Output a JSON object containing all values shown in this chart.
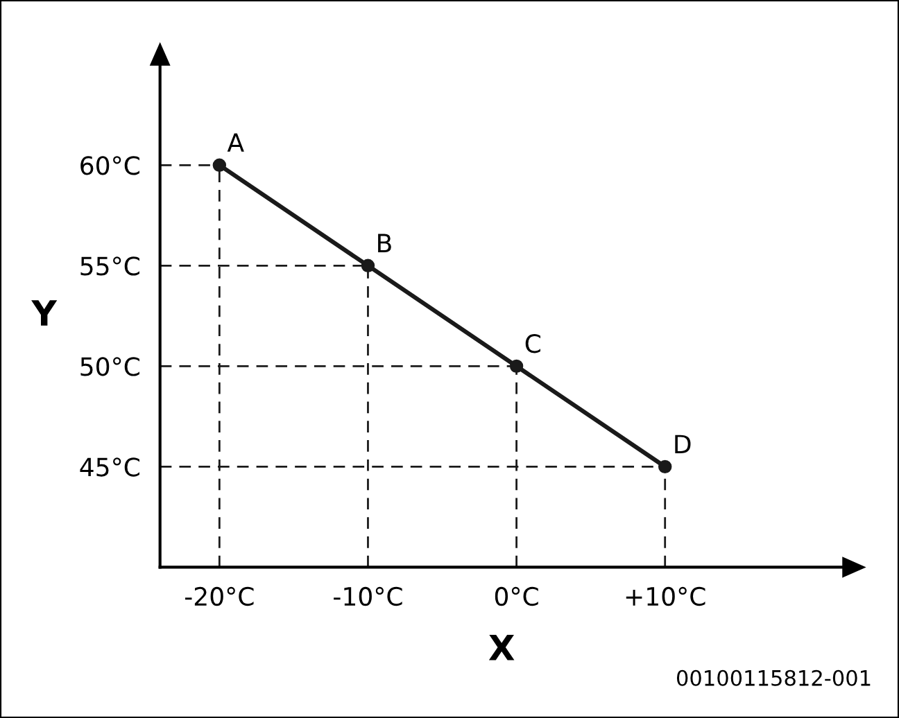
{
  "chart_data": {
    "type": "line",
    "xlabel": "X",
    "ylabel": "Y",
    "x": [
      -20,
      -10,
      0,
      10
    ],
    "series": [
      {
        "color": "#1a1a1a",
        "values": [
          60,
          55,
          50,
          45
        ]
      }
    ],
    "marker": "circle",
    "xlim": [
      -24,
      22
    ],
    "ylim": [
      40,
      65
    ],
    "xticks": [
      {
        "value": -20,
        "label": "-20°C"
      },
      {
        "value": -10,
        "label": "-10°C"
      },
      {
        "value": 0,
        "label": "0°C"
      },
      {
        "value": 10,
        "label": "+10°C"
      }
    ],
    "yticks": [
      {
        "value": 45,
        "label": "45°C"
      },
      {
        "value": 50,
        "label": "50°C"
      },
      {
        "value": 55,
        "label": "55°C"
      },
      {
        "value": 60,
        "label": "60°C"
      }
    ],
    "ref_lines": [
      {
        "axis": "x",
        "value": -20,
        "line_style": "dashed"
      },
      {
        "axis": "x",
        "value": -10,
        "line_style": "dashed"
      },
      {
        "axis": "x",
        "value": 0,
        "line_style": "dashed"
      },
      {
        "axis": "x",
        "value": 10,
        "line_style": "dashed"
      },
      {
        "axis": "y",
        "value": 60,
        "line_style": "dashed"
      },
      {
        "axis": "y",
        "value": 55,
        "line_style": "dashed"
      },
      {
        "axis": "y",
        "value": 50,
        "line_style": "dashed"
      },
      {
        "axis": "y",
        "value": 45,
        "line_style": "dashed"
      }
    ],
    "annotations": [
      {
        "text": "A",
        "x": -20,
        "y": 60
      },
      {
        "text": "B",
        "x": -10,
        "y": 55
      },
      {
        "text": "C",
        "x": 0,
        "y": 50
      },
      {
        "text": "D",
        "x": 10,
        "y": 45
      },
      "00100115812-001"
    ],
    "grid": false,
    "legend": false
  }
}
